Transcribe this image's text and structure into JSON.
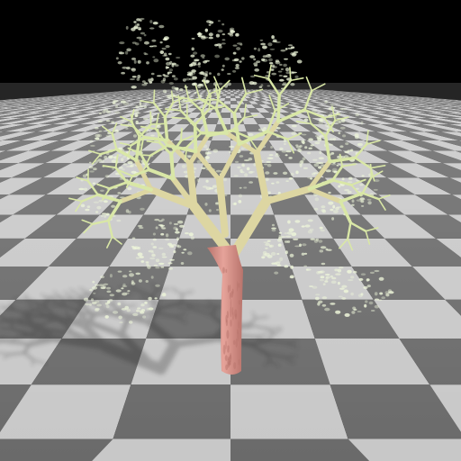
{
  "scene": {
    "subject": "fractal-tree",
    "colors": {
      "sky": "#000000",
      "floor_light": "#c8c8c8",
      "floor_dark": "#6a6a6a",
      "trunk": "#e6a39a",
      "trunk_dark": "#b8746c",
      "branch": "#ddd6a2",
      "twig": "#d9e7a6",
      "leaf": "#eef6da"
    },
    "elements": [
      {
        "name": "floor",
        "kind": "checkerboard"
      },
      {
        "name": "tree-shadow",
        "kind": "shadow"
      },
      {
        "name": "foliage-clusters",
        "kind": "speckle"
      },
      {
        "name": "branches",
        "kind": "strokes"
      },
      {
        "name": "trunk",
        "kind": "cylinder"
      }
    ]
  }
}
